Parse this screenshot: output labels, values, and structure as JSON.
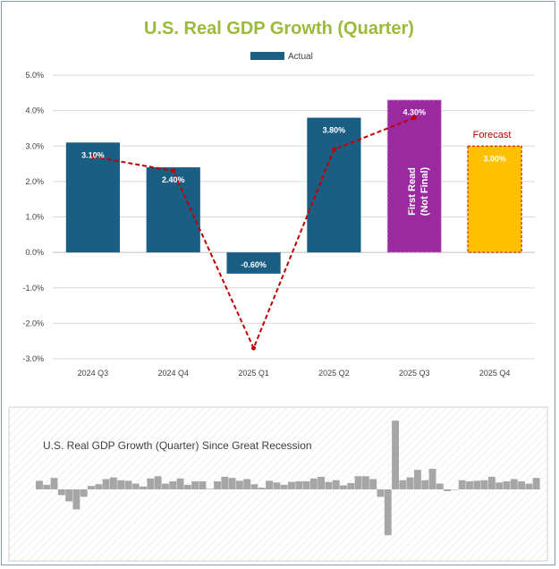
{
  "colors": {
    "actual": "#1b5e84",
    "first_read": "#9b2aa0",
    "forecast": "#ffc000",
    "trend": "#c00000",
    "title": "#9cba3a",
    "mini_bar": "#a6a6a6"
  },
  "chart_data": [
    {
      "type": "bar",
      "title": "U.S. Real GDP Growth (Quarter)",
      "legend": {
        "label": "Actual",
        "position": "top"
      },
      "categories": [
        "2024 Q3",
        "2024 Q4",
        "2025 Q1",
        "2025 Q2",
        "2025 Q3",
        "2025 Q4"
      ],
      "values": [
        3.1,
        2.4,
        -0.6,
        3.8,
        4.3,
        3.0
      ],
      "data_labels": [
        "3.10%",
        "2.40%",
        "-0.60%",
        "3.80%",
        "4.30%",
        "3.00%"
      ],
      "bar_kinds": [
        "actual",
        "actual",
        "actual",
        "actual",
        "first_read",
        "forecast"
      ],
      "first_read_label": "First Read",
      "first_read_label_2": "(Not Final)",
      "forecast_label": "Forecast",
      "ylim": [
        -3.0,
        5.0
      ],
      "yticks": [
        5.0,
        4.0,
        3.0,
        2.0,
        1.0,
        0.0,
        -1.0,
        -2.0,
        -3.0
      ],
      "ytick_labels": [
        "5.0%",
        "4.0%",
        "3.0%",
        "2.0%",
        "1.0%",
        "0.0%",
        "-1.0%",
        "-2.0%",
        "-3.0%"
      ],
      "trend_line": {
        "style": "dashed",
        "values": [
          2.7,
          2.3,
          -2.7,
          2.9,
          3.8
        ]
      },
      "grid": true
    },
    {
      "type": "bar",
      "title": "U.S. Real GDP Growth (Quarter) Since Great Recession",
      "values": [
        1.5,
        0.8,
        2.0,
        -1.0,
        -2.1,
        -3.5,
        -1.3,
        0.6,
        0.9,
        1.8,
        2.1,
        1.6,
        1.5,
        1.0,
        0.5,
        1.9,
        2.3,
        1.0,
        1.4,
        1.9,
        0.8,
        1.4,
        1.4,
        0.1,
        1.4,
        2.2,
        2.0,
        1.5,
        1.8,
        0.9,
        0.3,
        1.5,
        1.2,
        0.8,
        1.3,
        1.4,
        1.4,
        1.9,
        2.2,
        1.3,
        1.6,
        0.7,
        1.1,
        2.3,
        2.3,
        1.8,
        -1.3,
        -8.0,
        12.0,
        1.6,
        2.1,
        3.4,
        1.6,
        3.6,
        1.0,
        -0.3,
        0.0,
        1.6,
        1.4,
        1.5,
        1.6,
        2.2,
        1.2,
        1.4,
        1.8,
        1.4,
        1.0,
        2.0
      ]
    }
  ]
}
